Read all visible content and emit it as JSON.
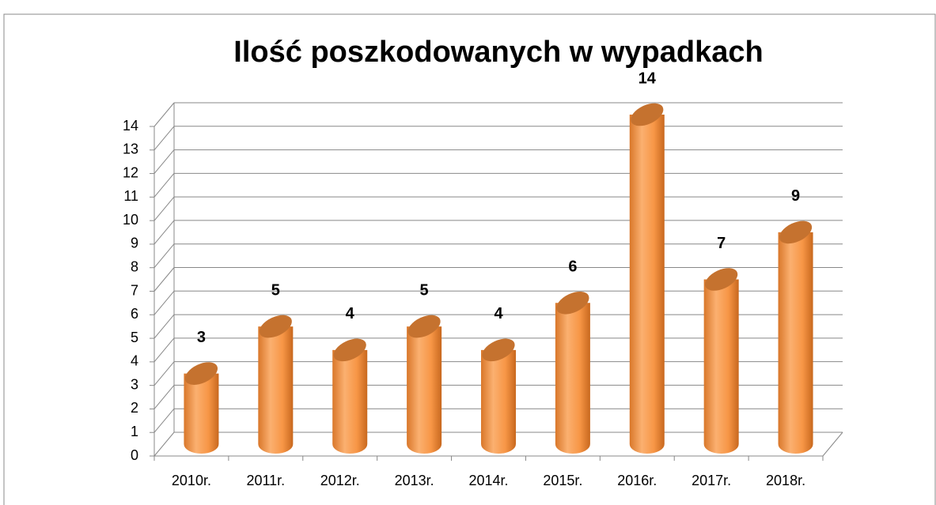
{
  "chart_data": {
    "type": "bar",
    "title": "Ilość poszkodowanych w wypadkach",
    "categories": [
      "2010r.",
      "2011r.",
      "2012r.",
      "2013r.",
      "2014r.",
      "2015r.",
      "2016r.",
      "2017r.",
      "2018r."
    ],
    "values": [
      3,
      5,
      4,
      5,
      4,
      6,
      14,
      7,
      9
    ],
    "color": "#f79646",
    "ylim": [
      0,
      14
    ],
    "yticks": [
      0,
      1,
      2,
      3,
      4,
      5,
      6,
      7,
      8,
      9,
      10,
      11,
      12,
      13,
      14
    ],
    "grid": true
  }
}
